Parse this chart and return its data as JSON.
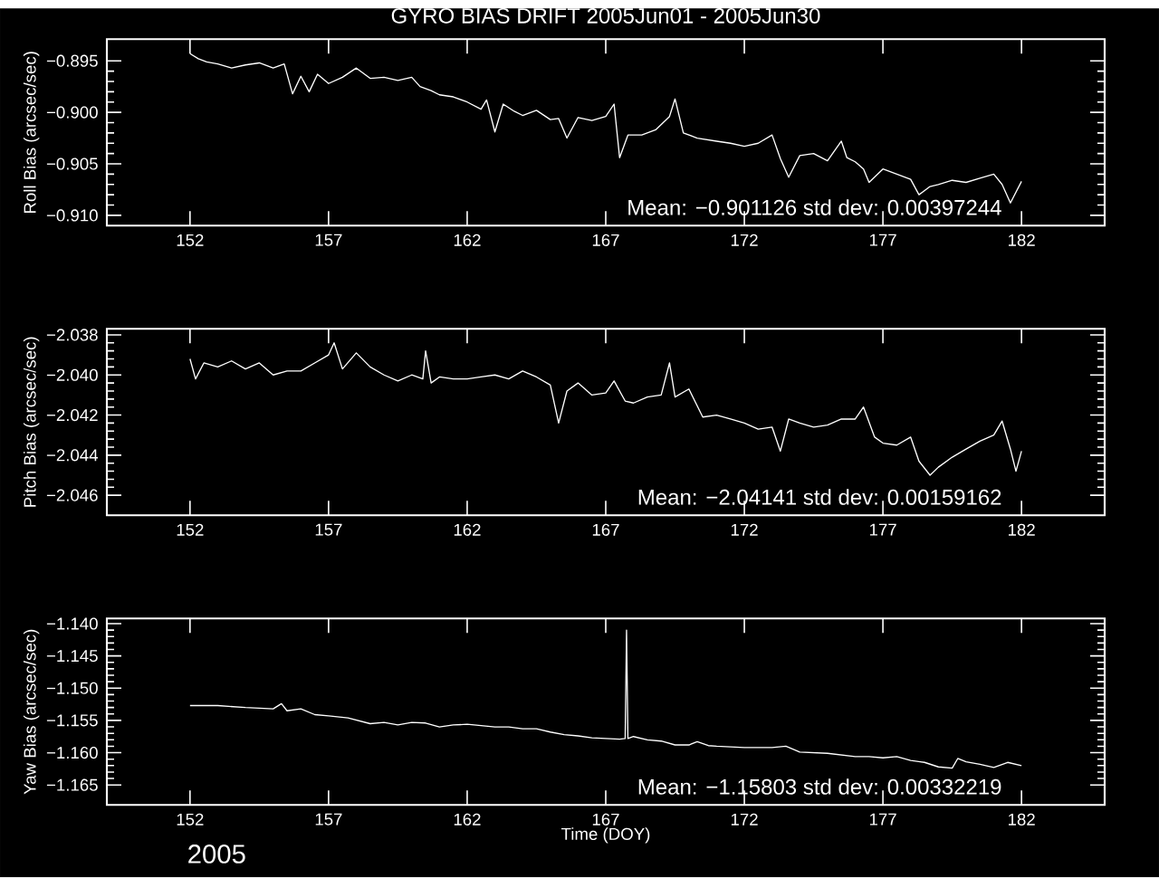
{
  "chart_data": [
    {
      "type": "line",
      "title": "GYRO BIAS DRIFT 2005Jun01 - 2005Jun30",
      "ylabel": "Roll Bias (arcsec/sec)",
      "xlim": [
        149,
        185
      ],
      "ylim": [
        -0.911,
        -0.8929
      ],
      "xticks": [
        152,
        157,
        162,
        167,
        172,
        177,
        182
      ],
      "yticks": [
        {
          "value": -0.895,
          "label": "−0.895"
        },
        {
          "value": -0.9,
          "label": "−0.900"
        },
        {
          "value": -0.905,
          "label": "−0.905"
        },
        {
          "value": -0.91,
          "label": "−0.910"
        }
      ],
      "annotations": [
        "Mean: −0.901126 std dev: 0.00397244"
      ],
      "x": [
        152.0,
        152.3,
        152.6,
        153,
        153.5,
        154,
        154.5,
        155,
        155.4,
        155.7,
        156,
        156.3,
        156.6,
        157,
        157.5,
        158,
        158.5,
        159,
        159.5,
        160,
        160.3,
        160.7,
        161,
        161.5,
        162,
        162.5,
        162.7,
        163,
        163.3,
        163.7,
        164,
        164.5,
        165,
        165.3,
        165.6,
        166,
        166.5,
        167,
        167.3,
        167.5,
        167.8,
        168.3,
        168.8,
        169.3,
        169.5,
        169.8,
        170.3,
        171,
        171.5,
        172,
        172.5,
        173,
        173.3,
        173.6,
        174,
        174.5,
        175,
        175.5,
        175.7,
        176,
        176.3,
        176.5,
        177,
        177.5,
        178,
        178.3,
        178.7,
        179,
        179.5,
        180,
        180.5,
        181,
        181.3,
        181.6,
        182
      ],
      "series": [
        {
          "color": "#ffffff",
          "values": [
            -0.8943,
            -0.8948,
            -0.8951,
            -0.8953,
            -0.8957,
            -0.8954,
            -0.8952,
            -0.8957,
            -0.8953,
            -0.8982,
            -0.8965,
            -0.898,
            -0.8963,
            -0.8972,
            -0.8966,
            -0.8957,
            -0.8967,
            -0.8966,
            -0.8969,
            -0.8966,
            -0.8975,
            -0.8979,
            -0.8983,
            -0.8985,
            -0.899,
            -0.8997,
            -0.8988,
            -0.9019,
            -0.8992,
            -0.8999,
            -0.9003,
            -0.8998,
            -0.9007,
            -0.9006,
            -0.9025,
            -0.9005,
            -0.9008,
            -0.9004,
            -0.8992,
            -0.9044,
            -0.9022,
            -0.9022,
            -0.9017,
            -0.9004,
            -0.8987,
            -0.902,
            -0.9025,
            -0.9028,
            -0.903,
            -0.9033,
            -0.903,
            -0.9022,
            -0.9045,
            -0.9063,
            -0.9042,
            -0.904,
            -0.9047,
            -0.9028,
            -0.9044,
            -0.9048,
            -0.9055,
            -0.9068,
            -0.9055,
            -0.906,
            -0.9065,
            -0.908,
            -0.9072,
            -0.907,
            -0.9066,
            -0.9068,
            -0.9064,
            -0.906,
            -0.907,
            -0.9088,
            -0.9067
          ]
        }
      ]
    },
    {
      "type": "line",
      "ylabel": "Pitch Bias (arcsec/sec)",
      "xlim": [
        149,
        185
      ],
      "ylim": [
        -2.047,
        -2.0377
      ],
      "xticks": [
        152,
        157,
        162,
        167,
        172,
        177,
        182
      ],
      "yticks": [
        {
          "value": -2.038,
          "label": "−2.038"
        },
        {
          "value": -2.04,
          "label": "−2.040"
        },
        {
          "value": -2.042,
          "label": "−2.042"
        },
        {
          "value": -2.044,
          "label": "−2.044"
        },
        {
          "value": -2.046,
          "label": "−2.046"
        }
      ],
      "annotations": [
        "Mean: −2.04141 std dev: 0.00159162"
      ],
      "x": [
        152,
        152.2,
        152.5,
        153,
        153.5,
        154,
        154.5,
        155,
        155.5,
        156,
        156.5,
        157,
        157.2,
        157.5,
        158,
        158.5,
        159,
        159.5,
        160,
        160.4,
        160.5,
        160.7,
        161,
        161.5,
        162,
        162.5,
        163,
        163.5,
        164,
        164.5,
        165,
        165.3,
        165.6,
        166,
        166.5,
        167,
        167.3,
        167.7,
        168,
        168.5,
        169,
        169.3,
        169.5,
        170,
        170.5,
        171,
        171.5,
        172,
        172.5,
        173,
        173.3,
        173.6,
        174,
        174.5,
        175,
        175.5,
        176,
        176.3,
        176.7,
        177,
        177.5,
        178,
        178.3,
        178.7,
        179,
        179.5,
        180,
        180.5,
        181,
        181.3,
        181.6,
        181.8,
        182
      ],
      "series": [
        {
          "color": "#ffffff",
          "values": [
            -2.0392,
            -2.0402,
            -2.0394,
            -2.0396,
            -2.0393,
            -2.0397,
            -2.0394,
            -2.04,
            -2.0398,
            -2.0398,
            -2.0394,
            -2.039,
            -2.0384,
            -2.0397,
            -2.0389,
            -2.0396,
            -2.04,
            -2.0403,
            -2.04,
            -2.0402,
            -2.0388,
            -2.0404,
            -2.0401,
            -2.0402,
            -2.0402,
            -2.0401,
            -2.04,
            -2.0402,
            -2.0398,
            -2.0401,
            -2.0405,
            -2.0424,
            -2.0408,
            -2.0404,
            -2.041,
            -2.0409,
            -2.0403,
            -2.0413,
            -2.0414,
            -2.0411,
            -2.041,
            -2.0394,
            -2.0411,
            -2.0407,
            -2.0421,
            -2.042,
            -2.0422,
            -2.0424,
            -2.0427,
            -2.0426,
            -2.0438,
            -2.0422,
            -2.0424,
            -2.0426,
            -2.0425,
            -2.0422,
            -2.0422,
            -2.0416,
            -2.0431,
            -2.0434,
            -2.0435,
            -2.0431,
            -2.0443,
            -2.045,
            -2.0446,
            -2.0441,
            -2.0437,
            -2.0433,
            -2.043,
            -2.0423,
            -2.0437,
            -2.0448,
            -2.0438
          ]
        }
      ]
    },
    {
      "type": "line",
      "ylabel": "Yaw Bias (arcsec/sec)",
      "xlabel": "Time (DOY)",
      "xlim": [
        149,
        185
      ],
      "ylim": [
        -1.1681,
        -1.1392
      ],
      "xticks": [
        152,
        157,
        162,
        167,
        172,
        177,
        182
      ],
      "yticks": [
        {
          "value": -1.14,
          "label": "−1.140"
        },
        {
          "value": -1.145,
          "label": "−1.145"
        },
        {
          "value": -1.15,
          "label": "−1.150"
        },
        {
          "value": -1.155,
          "label": "−1.155"
        },
        {
          "value": -1.16,
          "label": "−1.160"
        },
        {
          "value": -1.165,
          "label": "−1.165"
        }
      ],
      "annotations": [
        "Mean: −1.15803 std dev: 0.00332219",
        "2005"
      ],
      "x": [
        152,
        153,
        154,
        155,
        155.3,
        155.5,
        156,
        156.5,
        157,
        157.7,
        158.5,
        159,
        159.5,
        160,
        160.5,
        161,
        161.5,
        162,
        162.5,
        163,
        163.5,
        164,
        164.5,
        165,
        165.5,
        166,
        166.5,
        167,
        167.5,
        167.7,
        167.75,
        167.8,
        168,
        168.5,
        169,
        169.5,
        170,
        170.3,
        170.7,
        171,
        172,
        173,
        173.5,
        174,
        175,
        176,
        176.5,
        177,
        177.5,
        178,
        178.5,
        179,
        179.5,
        179.7,
        180,
        180.5,
        181,
        181.5,
        182
      ],
      "series": [
        {
          "color": "#ffffff",
          "values": [
            -1.1527,
            -1.1527,
            -1.153,
            -1.1532,
            -1.1524,
            -1.1535,
            -1.1532,
            -1.1541,
            -1.1543,
            -1.1546,
            -1.1555,
            -1.1553,
            -1.1557,
            -1.1553,
            -1.1554,
            -1.156,
            -1.1557,
            -1.1556,
            -1.1558,
            -1.156,
            -1.156,
            -1.1563,
            -1.1563,
            -1.1568,
            -1.1572,
            -1.1574,
            -1.1577,
            -1.1578,
            -1.1579,
            -1.1578,
            -1.141,
            -1.1578,
            -1.1575,
            -1.158,
            -1.1582,
            -1.1588,
            -1.1588,
            -1.1583,
            -1.1589,
            -1.159,
            -1.1592,
            -1.1592,
            -1.159,
            -1.1599,
            -1.1601,
            -1.1606,
            -1.1606,
            -1.1608,
            -1.1606,
            -1.1612,
            -1.1615,
            -1.1622,
            -1.1624,
            -1.1609,
            -1.1614,
            -1.1618,
            -1.1623,
            -1.1615,
            -1.162
          ]
        }
      ]
    }
  ]
}
